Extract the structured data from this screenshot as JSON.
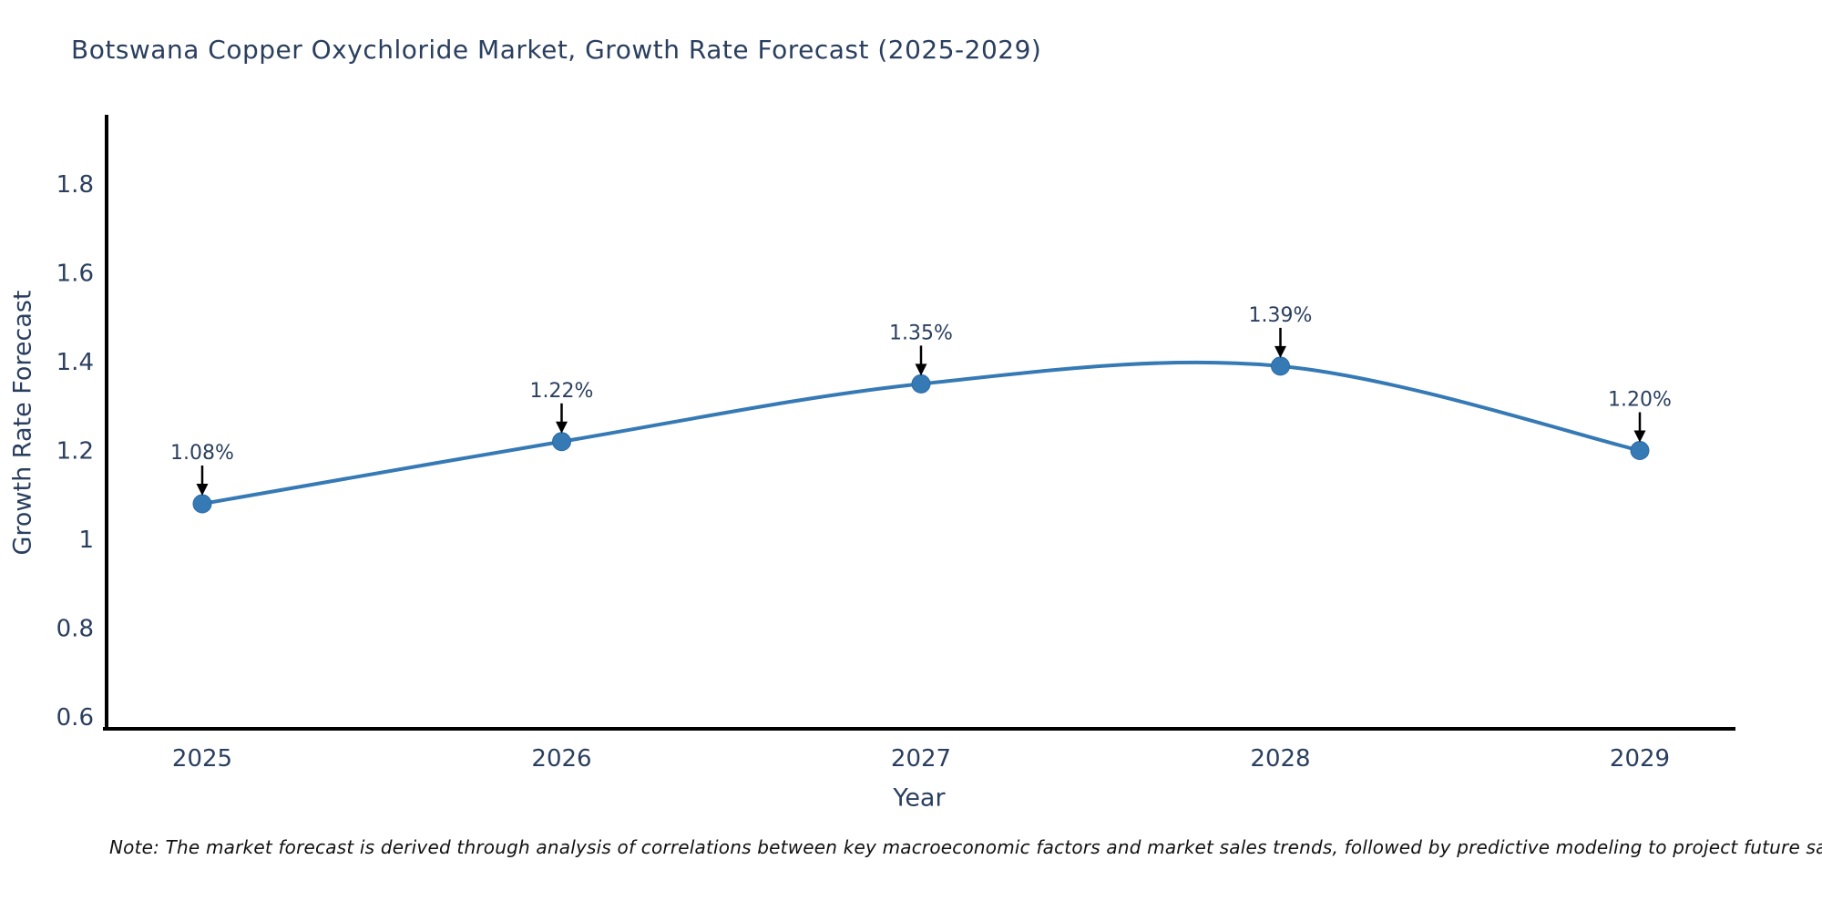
{
  "title": "Botswana Copper Oxychloride Market, Growth Rate Forecast (2025-2029)",
  "note": "Note: The market forecast is derived through analysis of correlations between key macroeconomic factors and market sales trends, followed by predictive modeling to project future sales",
  "colors": {
    "line": "#3579b5",
    "marker_fill": "#3579b5",
    "marker_edge": "#2d6ba3",
    "text": "#2a3f5f",
    "axis": "#000000",
    "arrow": "#000000",
    "note_text": "#111111",
    "background": "#ffffff"
  },
  "chart_data": {
    "type": "line",
    "title": "Botswana Copper Oxychloride Market, Growth Rate Forecast (2025-2029)",
    "xlabel": "Year",
    "ylabel": "Growth Rate Forecast",
    "categories": [
      "2025",
      "2026",
      "2027",
      "2028",
      "2029"
    ],
    "x": [
      2025,
      2026,
      2027,
      2028,
      2029
    ],
    "series": [
      {
        "name": "Growth Rate Forecast",
        "values": [
          1.08,
          1.22,
          1.35,
          1.39,
          1.2
        ]
      }
    ],
    "point_labels": [
      "1.08%",
      "1.22%",
      "1.35%",
      "1.39%",
      "1.20%"
    ],
    "y_ticks": [
      "1.8",
      "1.6",
      "1.4",
      "1.2",
      "1",
      "0.8",
      "0.6"
    ],
    "y_tick_values": [
      1.8,
      1.6,
      1.4,
      1.2,
      1.0,
      0.8,
      0.6
    ],
    "ylim": [
      0.57,
      1.95
    ],
    "grid": false,
    "legend": false,
    "line_shape": "spline",
    "markers": true
  }
}
